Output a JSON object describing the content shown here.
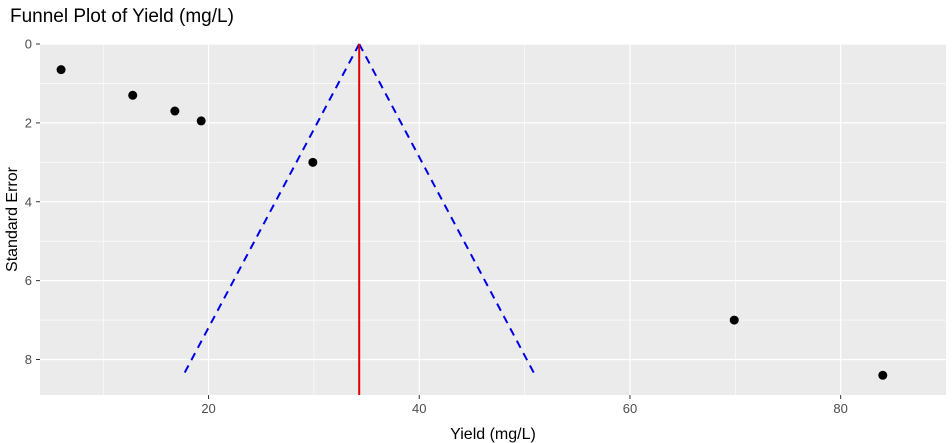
{
  "chart_data": {
    "type": "scatter",
    "title": "Funnel Plot of Yield (mg/L)",
    "xlabel": "Yield (mg/L)",
    "ylabel": "Standard Error",
    "xlim": [
      4,
      90
    ],
    "ylim": [
      0,
      8.9
    ],
    "y_reversed": true,
    "x_ticks": [
      20,
      40,
      60,
      80
    ],
    "y_ticks": [
      0,
      2,
      4,
      6,
      8
    ],
    "grid": true,
    "points": [
      {
        "x": 6.0,
        "y": 0.65
      },
      {
        "x": 12.8,
        "y": 1.3
      },
      {
        "x": 16.8,
        "y": 1.7
      },
      {
        "x": 19.3,
        "y": 1.95
      },
      {
        "x": 29.9,
        "y": 3.0
      },
      {
        "x": 69.9,
        "y": 7.0
      },
      {
        "x": 84.0,
        "y": 8.4
      }
    ],
    "reference_line": {
      "x": 34.3,
      "style": "solid",
      "color": "#e00000"
    },
    "funnel": {
      "apex": {
        "x": 34.3,
        "y": 0
      },
      "left_end": {
        "x": 17.6,
        "y": 8.4
      },
      "right_end": {
        "x": 51.0,
        "y": 8.4
      },
      "style": "dashed",
      "color": "#0000e6"
    },
    "colors": {
      "panel_background": "#ebebeb",
      "grid": "#ffffff",
      "points": "#000000"
    }
  }
}
